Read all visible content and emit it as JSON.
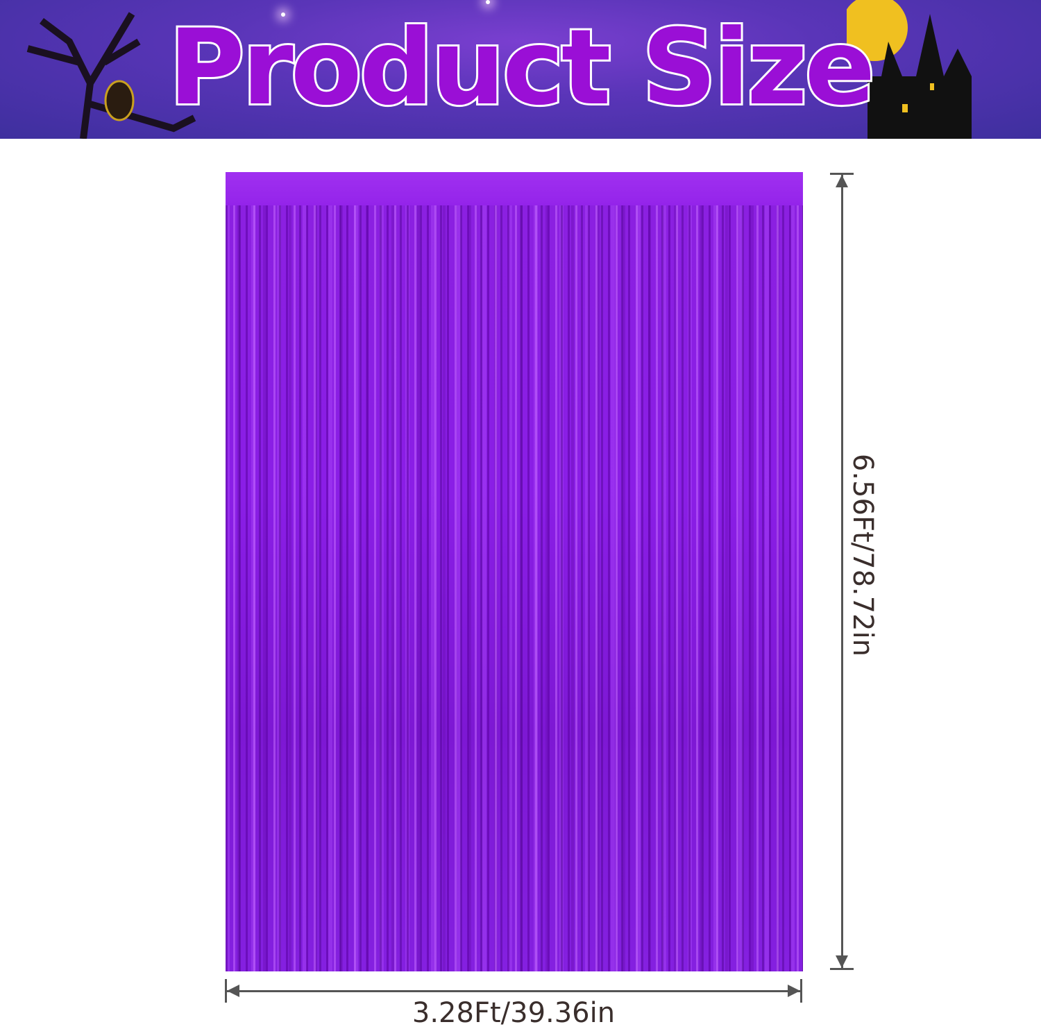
{
  "banner": {
    "title": "Product Size",
    "background_color": "#4a33a8",
    "title_color": "#9a0fd6"
  },
  "product": {
    "name_icon": "purple-foil-fringe-curtain",
    "color": "#8a1ee0"
  },
  "dimensions": {
    "width_label": "3.28Ft/39.36in",
    "height_label": "6.56Ft/78.72in",
    "line_color": "#555555",
    "text_color": "#3a2e2c"
  }
}
